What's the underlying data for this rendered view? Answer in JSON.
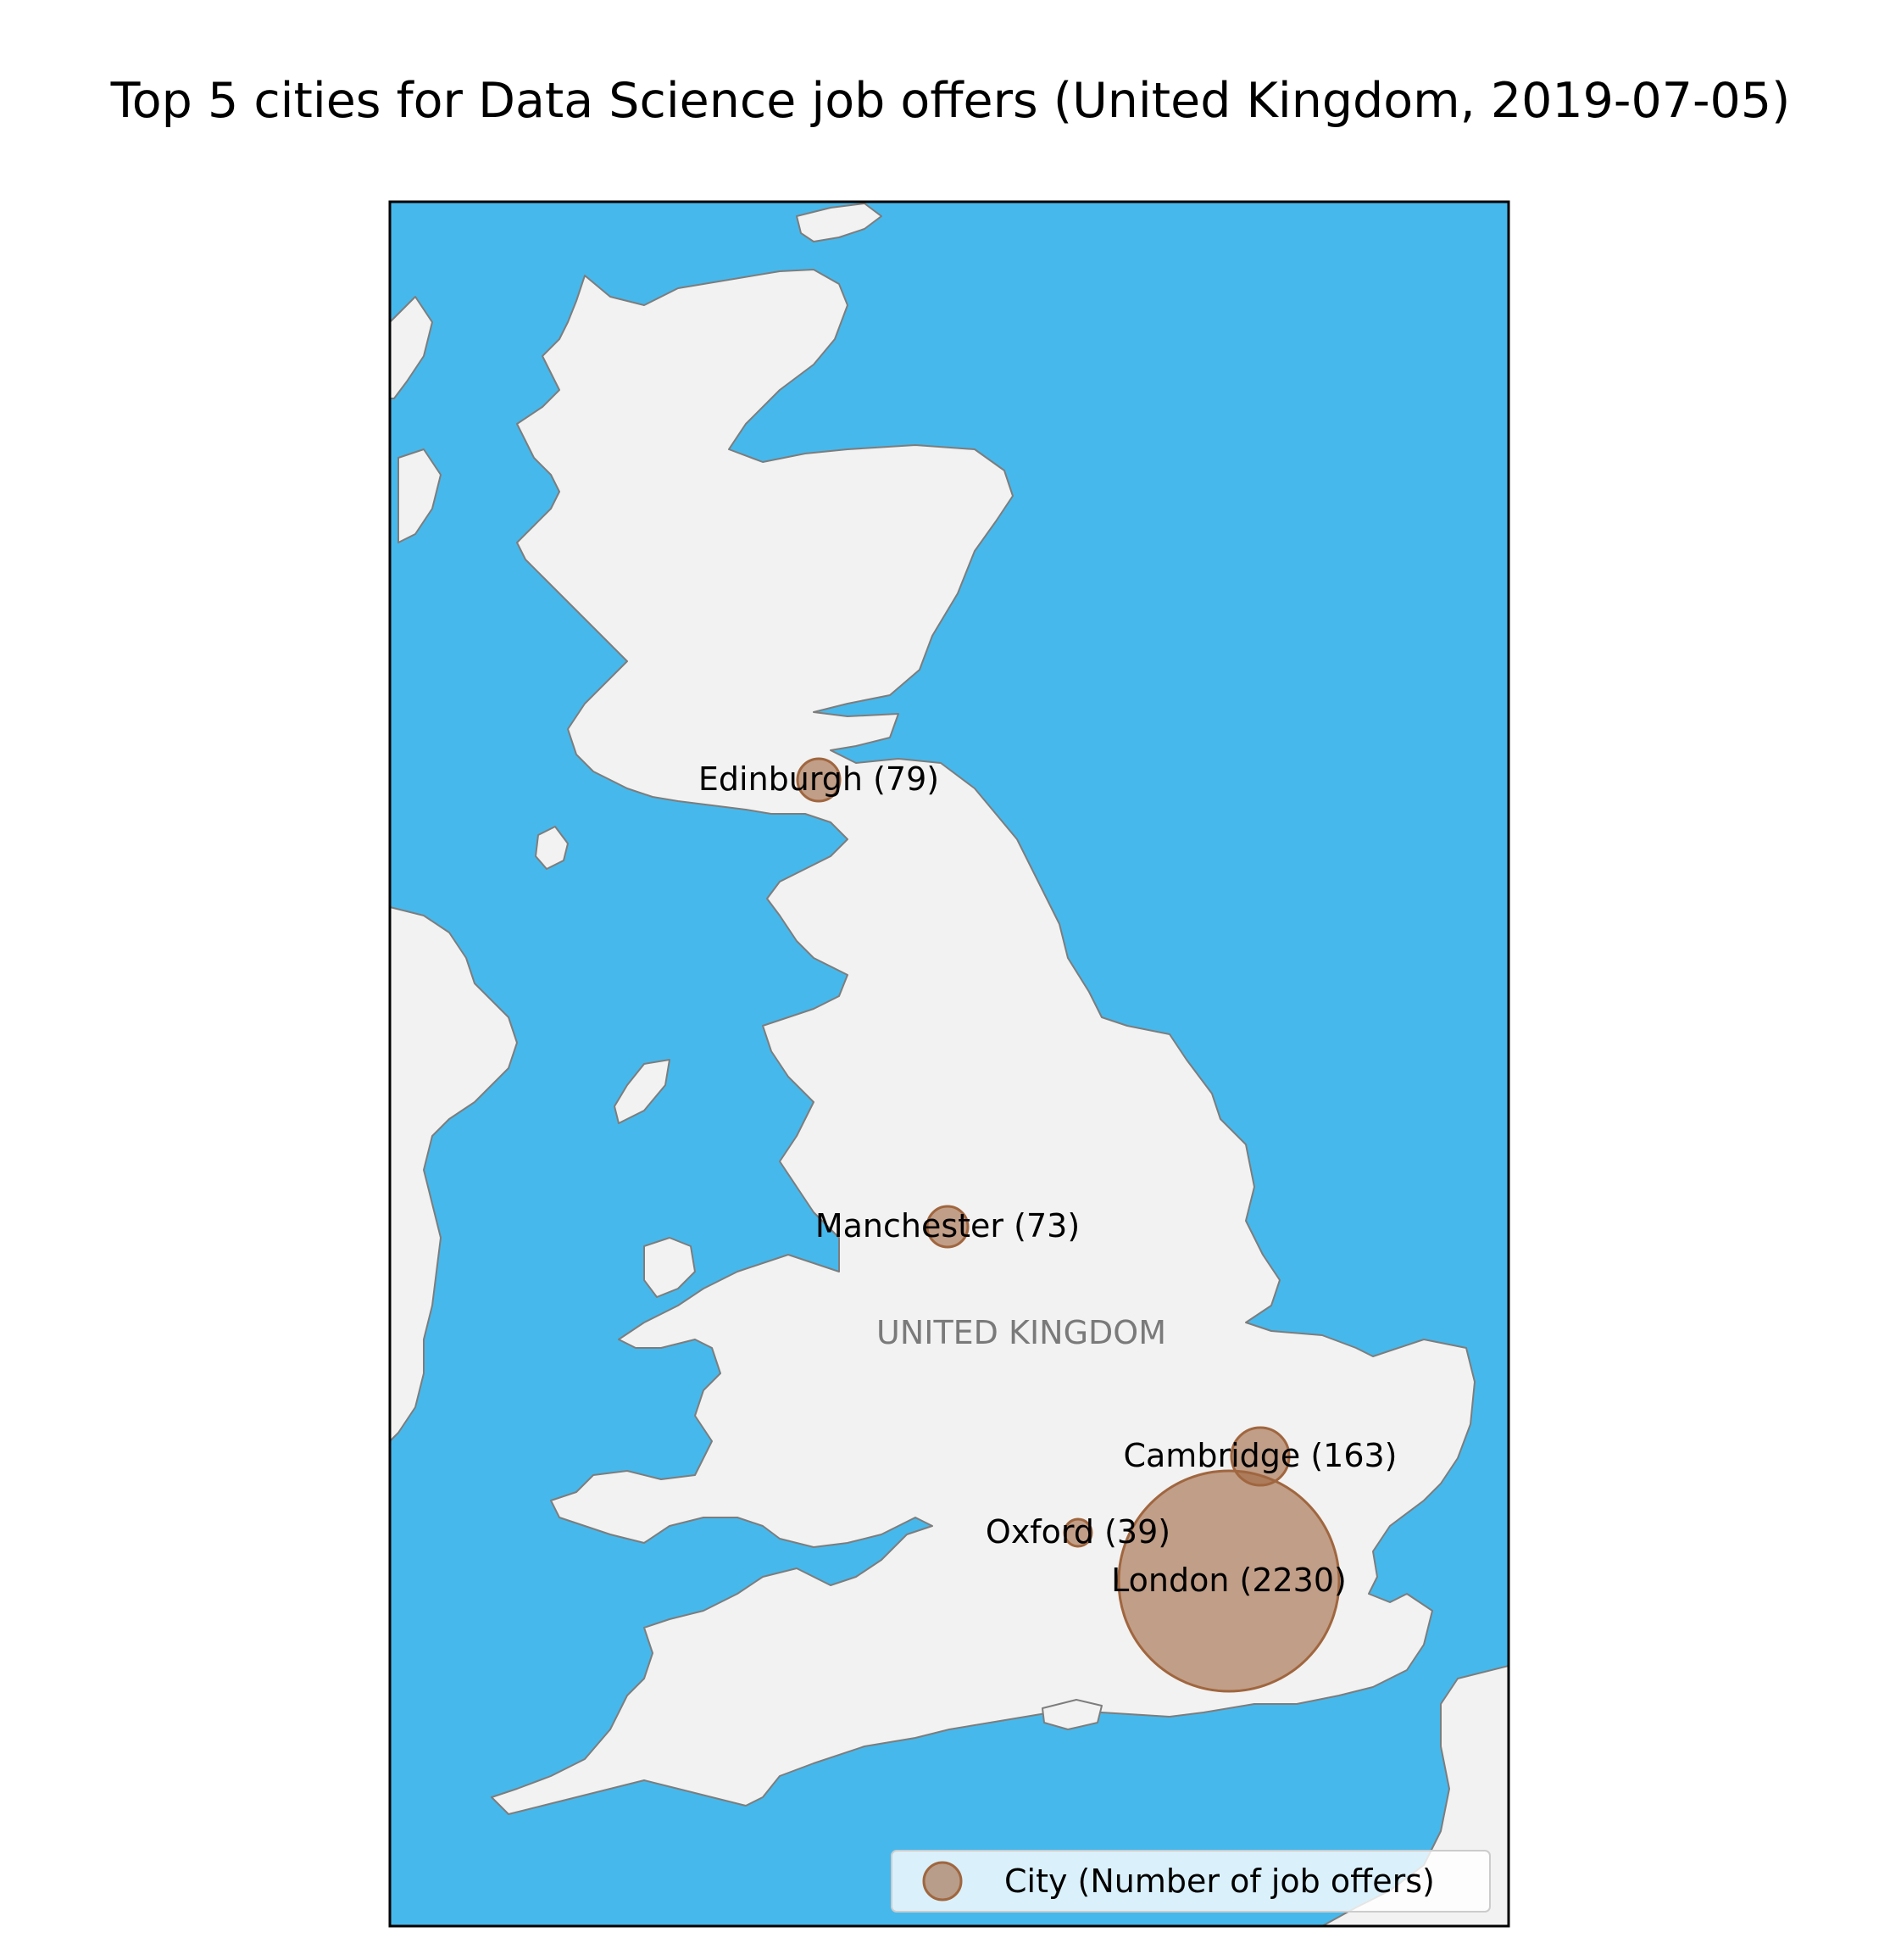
{
  "title": "Top 5 cities for Data Science job offers (United Kingdom, 2019-07-05)",
  "country_label": "UNITED KINGDOM",
  "legend": {
    "label": "City (Number of job offers)"
  },
  "colors": {
    "sea": "#47b8eb",
    "land": "#f2f2f2",
    "coast": "#7d7d7d",
    "marker": "#a0663f"
  },
  "cities": [
    {
      "name": "Edinburgh",
      "count": 79,
      "label": "Edinburgh (79)"
    },
    {
      "name": "Manchester",
      "count": 73,
      "label": "Manchester (73)"
    },
    {
      "name": "Cambridge",
      "count": 163,
      "label": "Cambridge (163)"
    },
    {
      "name": "Oxford",
      "count": 39,
      "label": "Oxford (39)"
    },
    {
      "name": "London",
      "count": 2230,
      "label": "London (2230)"
    }
  ]
}
